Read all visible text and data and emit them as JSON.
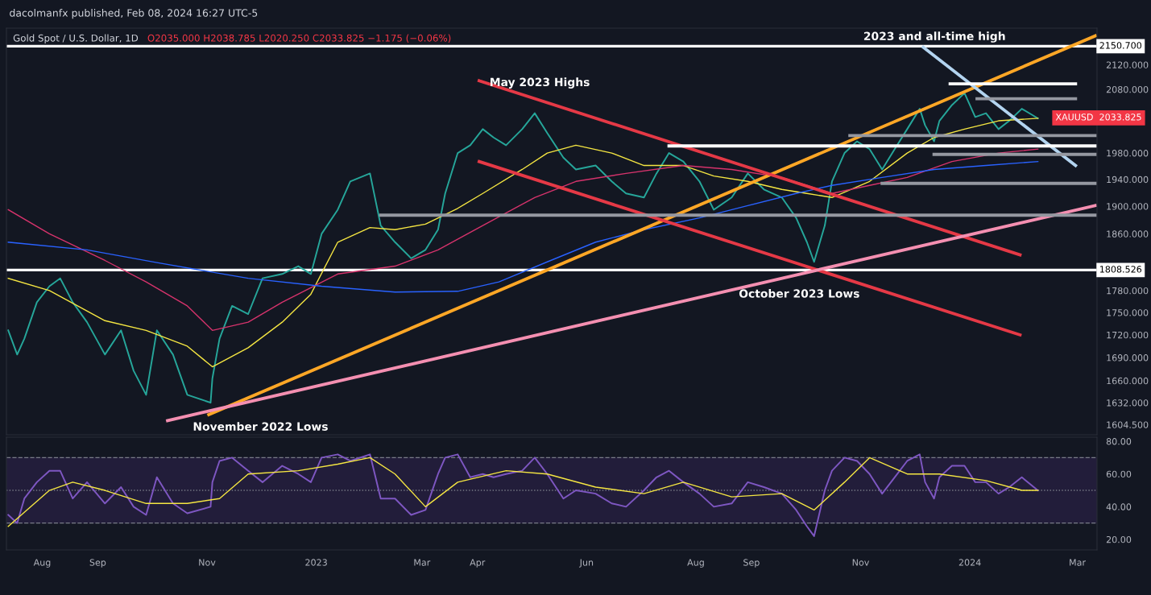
{
  "chart_data": [
    {
      "type": "line",
      "title": "Gold Spot / U.S. Dollar, 1D",
      "subtitle": "O2035.000 H2038.785 L2020.250 C2033.825 −1.175 (−0.06%)",
      "log": "y",
      "grid": false,
      "tick_labels": "y",
      "xlim": [
        "2022-07-12",
        "2024-03-12"
      ],
      "ylim": [
        1592,
        2181
      ],
      "yticks": [
        {
          "value": 1604.5,
          "label": "1604.500"
        },
        {
          "value": 1632,
          "label": "1632.000"
        },
        {
          "value": 1660,
          "label": "1660.000"
        },
        {
          "value": 1690,
          "label": "1690.000"
        },
        {
          "value": 1720,
          "label": "1720.000"
        },
        {
          "value": 1750,
          "label": "1750.000"
        },
        {
          "value": 1780,
          "label": "1780.000"
        },
        {
          "value": 1860,
          "label": "1860.000"
        },
        {
          "value": 1900,
          "label": "1900.000"
        },
        {
          "value": 1940,
          "label": "1940.000"
        },
        {
          "value": 1980,
          "label": "1980.000"
        },
        {
          "value": 2080,
          "label": "2080.000"
        },
        {
          "value": 2120,
          "label": "2120.000"
        }
      ],
      "series": [
        {
          "color": "#26a69a",
          "x": [
            "2022-07-13",
            "2022-07-18",
            "2022-07-22",
            "2022-07-29",
            "2022-08-05",
            "2022-08-11",
            "2022-08-18",
            "2022-08-26",
            "2022-09-05",
            "2022-09-14",
            "2022-09-21",
            "2022-09-28",
            "2022-10-04",
            "2022-10-13",
            "2022-10-21",
            "2022-11-03",
            "2022-11-04",
            "2022-11-08",
            "2022-11-15",
            "2022-11-24",
            "2022-12-02",
            "2022-12-13",
            "2022-12-22",
            "2022-12-29",
            "2023-01-04",
            "2023-01-13",
            "2023-01-20",
            "2023-01-31",
            "2023-02-06",
            "2023-02-14",
            "2023-02-23",
            "2023-03-03",
            "2023-03-10",
            "2023-03-14",
            "2023-03-21",
            "2023-03-28",
            "2023-04-04",
            "2023-04-10",
            "2023-04-17",
            "2023-04-26",
            "2023-05-03",
            "2023-05-10",
            "2023-05-19",
            "2023-05-26",
            "2023-06-06",
            "2023-06-15",
            "2023-06-23",
            "2023-07-03",
            "2023-07-10",
            "2023-07-17",
            "2023-07-25",
            "2023-08-03",
            "2023-08-11",
            "2023-08-21",
            "2023-08-30",
            "2023-09-08",
            "2023-09-18",
            "2023-09-26",
            "2023-10-02",
            "2023-10-06",
            "2023-10-12",
            "2023-10-16",
            "2023-10-23",
            "2023-10-30",
            "2023-11-06",
            "2023-11-13",
            "2023-11-20",
            "2023-11-27",
            "2023-12-04",
            "2023-12-07",
            "2023-12-12",
            "2023-12-15",
            "2023-12-22",
            "2023-12-29",
            "2024-01-04",
            "2024-01-10",
            "2024-01-17",
            "2024-01-23",
            "2024-01-30",
            "2024-02-08"
          ],
          "values": [
            1726,
            1694,
            1715,
            1764,
            1786,
            1797,
            1764,
            1737,
            1694,
            1726,
            1673,
            1642,
            1726,
            1694,
            1642,
            1632,
            1663,
            1715,
            1759,
            1748,
            1797,
            1803,
            1814,
            1803,
            1860,
            1895,
            1937,
            1949,
            1872,
            1848,
            1825,
            1837,
            1866,
            1919,
            1980,
            1992,
            2017,
            2004,
            1992,
            2017,
            2042,
            2011,
            1973,
            1955,
            1961,
            1937,
            1919,
            1913,
            1949,
            1980,
            1967,
            1937,
            1895,
            1913,
            1949,
            1925,
            1913,
            1883,
            1848,
            1820,
            1872,
            1937,
            1980,
            1998,
            1986,
            1955,
            1986,
            2017,
            2049,
            2023,
            1998,
            2030,
            2055,
            2074,
            2036,
            2042,
            2017,
            2030,
            2049,
            2033.825
          ]
        },
        {
          "color": "#f5e642",
          "x": [
            "2022-07-13",
            "2022-08-05",
            "2022-09-05",
            "2022-09-28",
            "2022-10-21",
            "2022-11-04",
            "2022-11-24",
            "2022-12-13",
            "2022-12-29",
            "2023-01-13",
            "2023-01-31",
            "2023-02-14",
            "2023-03-03",
            "2023-03-21",
            "2023-04-04",
            "2023-04-26",
            "2023-05-10",
            "2023-05-26",
            "2023-06-15",
            "2023-07-03",
            "2023-07-25",
            "2023-08-11",
            "2023-08-30",
            "2023-09-18",
            "2023-10-02",
            "2023-10-16",
            "2023-11-06",
            "2023-11-27",
            "2023-12-12",
            "2023-12-29",
            "2024-01-17",
            "2024-02-08"
          ],
          "values": [
            1797,
            1780,
            1739,
            1726,
            1705,
            1678,
            1703,
            1737,
            1775,
            1848,
            1869,
            1866,
            1874,
            1897,
            1919,
            1955,
            1980,
            1992,
            1980,
            1961,
            1961,
            1945,
            1937,
            1925,
            1919,
            1913,
            1937,
            1980,
            2004,
            2017,
            2030,
            2034
          ]
        },
        {
          "color": "#d6336c",
          "x": [
            "2022-07-13",
            "2022-08-05",
            "2022-09-05",
            "2022-09-28",
            "2022-10-21",
            "2022-11-04",
            "2022-11-24",
            "2022-12-13",
            "2023-01-13",
            "2023-02-14",
            "2023-03-10",
            "2023-04-04",
            "2023-05-03",
            "2023-05-26",
            "2023-06-23",
            "2023-07-25",
            "2023-08-21",
            "2023-09-18",
            "2023-10-02",
            "2023-10-16",
            "2023-11-06",
            "2023-11-27",
            "2023-12-22",
            "2024-01-17",
            "2024-02-08"
          ],
          "values": [
            1895,
            1860,
            1822,
            1792,
            1759,
            1726,
            1737,
            1764,
            1803,
            1814,
            1837,
            1872,
            1913,
            1937,
            1949,
            1961,
            1955,
            1943,
            1931,
            1919,
            1931,
            1943,
            1967,
            1980,
            1986
          ]
        },
        {
          "color": "#2962ff",
          "x": [
            "2022-07-13",
            "2022-08-26",
            "2022-10-04",
            "2022-11-24",
            "2023-01-04",
            "2023-02-14",
            "2023-03-21",
            "2023-04-13",
            "2023-05-10",
            "2023-06-06",
            "2023-07-03",
            "2023-08-03",
            "2023-08-30",
            "2023-09-26",
            "2023-10-16",
            "2023-11-13",
            "2023-12-12",
            "2024-01-10",
            "2024-02-08"
          ],
          "values": [
            1848,
            1837,
            1819,
            1797,
            1786,
            1778,
            1779,
            1792,
            1820,
            1848,
            1866,
            1883,
            1901,
            1919,
            1931,
            1943,
            1955,
            1961,
            1967
          ]
        },
        {
          "color": "#ffa726",
          "x": [
            "2022-11-02",
            "2024-03-11"
          ],
          "values": [
            1617,
            2168
          ]
        },
        {
          "color": "#e53946",
          "x": [
            "2023-04-02",
            "2024-01-29"
          ],
          "values": [
            2094,
            1830
          ]
        },
        {
          "color": "#e53946",
          "x": [
            "2023-04-02",
            "2024-01-29"
          ],
          "values": [
            1967,
            1720
          ]
        },
        {
          "color": "#f48fb1",
          "x": [
            "2022-10-10",
            "2024-03-11"
          ],
          "values": [
            1609.5,
            1901
          ]
        },
        {
          "color": "#b3d4f0",
          "x": [
            "2023-12-06",
            "2024-02-29"
          ],
          "values": [
            2149,
            1961
          ]
        },
        {
          "color": "#ffffff",
          "x": [
            "2023-12-21",
            "2024-02-29"
          ],
          "values": [
            2089,
            2089
          ]
        },
        {
          "color": "#ffffff",
          "x": [
            "2023-07-17",
            "2024-03-11"
          ],
          "values": [
            1991,
            1991
          ]
        },
        {
          "color": "#9598a1",
          "x": [
            "2023-02-06",
            "2024-03-11"
          ],
          "values": [
            1887,
            1887
          ]
        },
        {
          "color": "#9598a1",
          "x": [
            "2024-01-05",
            "2024-02-29"
          ],
          "values": [
            2065,
            2065
          ]
        },
        {
          "color": "#9598a1",
          "x": [
            "2023-10-26",
            "2024-03-11"
          ],
          "values": [
            2007,
            2007
          ]
        },
        {
          "color": "#9598a1",
          "x": [
            "2023-12-12",
            "2024-03-11"
          ],
          "values": [
            1978,
            1978
          ]
        },
        {
          "color": "#9598a1",
          "x": [
            "2023-11-13",
            "2024-03-11"
          ],
          "values": [
            1934,
            1934
          ]
        }
      ],
      "ref_lines": [
        {
          "axis": "y",
          "value": 2150.7,
          "label": "2150.700",
          "color": "#ffffff"
        },
        {
          "axis": "y",
          "value": 1808.526,
          "label": "1808.526",
          "color": "#ffffff"
        }
      ],
      "annotations": [
        "dacolmanfx published, Feb 08, 2024 16:27 UTC-5",
        "May 2023 Highs",
        "2023 and all-time high",
        "November 2022 Lows",
        "October 2023 Lows",
        "XAUUSD  2033.825"
      ]
    },
    {
      "type": "line",
      "grid": false,
      "xlim": [
        "2022-07-12",
        "2024-03-12"
      ],
      "xticks": [
        {
          "value": "2022-08-01",
          "label": "Aug"
        },
        {
          "value": "2022-09-01",
          "label": "Sep"
        },
        {
          "value": "2022-11-01",
          "label": "Nov"
        },
        {
          "value": "2023-01-01",
          "label": "2023"
        },
        {
          "value": "2023-03-01",
          "label": "Mar"
        },
        {
          "value": "2023-04-01",
          "label": "Apr"
        },
        {
          "value": "2023-06-01",
          "label": "Jun"
        },
        {
          "value": "2023-08-01",
          "label": "Aug"
        },
        {
          "value": "2023-09-01",
          "label": "Sep"
        },
        {
          "value": "2023-11-01",
          "label": "Nov"
        },
        {
          "value": "2024-01-01",
          "label": "2024"
        },
        {
          "value": "2024-03-01",
          "label": "Mar"
        }
      ],
      "ylim": [
        13.6,
        82.5
      ],
      "yticks": [
        {
          "value": 20,
          "label": "20.00"
        },
        {
          "value": 40,
          "label": "40.00"
        },
        {
          "value": 60,
          "label": "60.00"
        },
        {
          "value": 80,
          "label": "80.00"
        }
      ],
      "bands": [
        {
          "axis": "y",
          "from": 30,
          "to": 70,
          "color": "#221d3a"
        }
      ],
      "ref_lines": [
        {
          "axis": "y",
          "value": 70,
          "color": "#787b86",
          "line_style": "dashed"
        },
        {
          "axis": "y",
          "value": 50,
          "color": "#787b86",
          "line_style": "dotted"
        },
        {
          "axis": "y",
          "value": 30,
          "color": "#787b86",
          "line_style": "dashed"
        }
      ],
      "series": [
        {
          "color": "#7e57c2",
          "x": [
            "2022-07-13",
            "2022-07-18",
            "2022-07-22",
            "2022-07-29",
            "2022-08-05",
            "2022-08-11",
            "2022-08-18",
            "2022-08-26",
            "2022-09-05",
            "2022-09-14",
            "2022-09-21",
            "2022-09-28",
            "2022-10-04",
            "2022-10-13",
            "2022-10-21",
            "2022-11-03",
            "2022-11-04",
            "2022-11-08",
            "2022-11-15",
            "2022-11-24",
            "2022-12-02",
            "2022-12-13",
            "2022-12-22",
            "2022-12-29",
            "2023-01-04",
            "2023-01-13",
            "2023-01-20",
            "2023-01-31",
            "2023-02-06",
            "2023-02-14",
            "2023-02-23",
            "2023-03-03",
            "2023-03-10",
            "2023-03-14",
            "2023-03-21",
            "2023-03-28",
            "2023-04-04",
            "2023-04-10",
            "2023-04-17",
            "2023-04-26",
            "2023-05-03",
            "2023-05-10",
            "2023-05-19",
            "2023-05-26",
            "2023-06-06",
            "2023-06-15",
            "2023-06-23",
            "2023-07-03",
            "2023-07-10",
            "2023-07-17",
            "2023-07-25",
            "2023-08-03",
            "2023-08-11",
            "2023-08-21",
            "2023-08-30",
            "2023-09-08",
            "2023-09-18",
            "2023-09-26",
            "2023-10-02",
            "2023-10-06",
            "2023-10-12",
            "2023-10-16",
            "2023-10-23",
            "2023-10-30",
            "2023-11-06",
            "2023-11-13",
            "2023-11-20",
            "2023-11-27",
            "2023-12-04",
            "2023-12-07",
            "2023-12-12",
            "2023-12-15",
            "2023-12-22",
            "2023-12-29",
            "2024-01-04",
            "2024-01-10",
            "2024-01-17",
            "2024-01-23",
            "2024-01-30",
            "2024-02-08"
          ],
          "values": [
            35,
            30,
            45,
            55,
            62,
            62,
            45,
            55,
            42,
            52,
            40,
            35,
            58,
            42,
            36,
            40,
            55,
            68,
            70,
            62,
            55,
            65,
            60,
            55,
            70,
            72,
            68,
            72,
            45,
            45,
            35,
            38,
            60,
            70,
            72,
            58,
            60,
            58,
            60,
            62,
            70,
            60,
            45,
            50,
            48,
            42,
            40,
            50,
            58,
            62,
            55,
            48,
            40,
            42,
            55,
            52,
            48,
            38,
            28,
            22,
            50,
            62,
            70,
            68,
            60,
            48,
            58,
            68,
            72,
            55,
            45,
            58,
            65,
            65,
            55,
            55,
            48,
            52,
            58,
            50
          ]
        },
        {
          "color": "#f5e642",
          "x": [
            "2022-07-13",
            "2022-08-05",
            "2022-08-18",
            "2022-09-05",
            "2022-09-28",
            "2022-10-21",
            "2022-11-08",
            "2022-11-24",
            "2022-12-22",
            "2023-01-13",
            "2023-01-31",
            "2023-02-14",
            "2023-03-03",
            "2023-03-21",
            "2023-04-17",
            "2023-05-10",
            "2023-06-06",
            "2023-07-03",
            "2023-07-25",
            "2023-08-21",
            "2023-09-18",
            "2023-10-06",
            "2023-10-23",
            "2023-11-06",
            "2023-11-27",
            "2023-12-15",
            "2024-01-10",
            "2024-01-30",
            "2024-02-08"
          ],
          "values": [
            28,
            50,
            55,
            50,
            42,
            42,
            45,
            60,
            62,
            66,
            70,
            60,
            40,
            55,
            62,
            60,
            52,
            48,
            55,
            46,
            48,
            38,
            55,
            70,
            60,
            60,
            56,
            50,
            50
          ]
        }
      ]
    }
  ]
}
